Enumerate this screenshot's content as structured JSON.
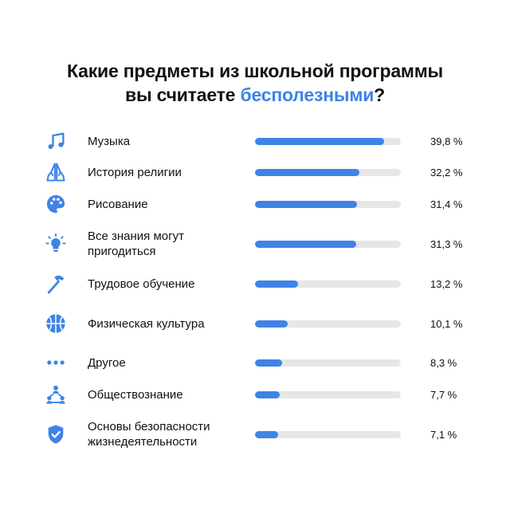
{
  "title": {
    "line1": "Какие предметы из школьной программы",
    "line2_prefix": "вы считаете ",
    "line2_accent": "бесполезными",
    "line2_suffix": "?"
  },
  "colors": {
    "accent": "#3f83e6",
    "track": "#e6e6e6",
    "text": "#111111"
  },
  "chart_data": {
    "type": "bar",
    "orientation": "horizontal",
    "max": 45,
    "rows": [
      {
        "label": "Музыка",
        "value": 39.8,
        "value_label": "39,8 %",
        "icon": "music-note-icon"
      },
      {
        "label": "История религии",
        "value": 32.2,
        "value_label": "32,2 %",
        "icon": "praying-hands-icon"
      },
      {
        "label": "Рисование",
        "value": 31.4,
        "value_label": "31,4 %",
        "icon": "palette-icon"
      },
      {
        "label": "Все знания могут пригодиться",
        "value": 31.3,
        "value_label": "31,3 %",
        "icon": "lightbulb-icon"
      },
      {
        "label": "Трудовое обучение",
        "value": 13.2,
        "value_label": "13,2 %",
        "icon": "hammer-icon"
      },
      {
        "label": "Физическая культура",
        "value": 10.1,
        "value_label": "10,1 %",
        "icon": "basketball-icon"
      },
      {
        "label": "Другое",
        "value": 8.3,
        "value_label": "8,3 %",
        "icon": "dots-icon"
      },
      {
        "label": "Обществознание",
        "value": 7.7,
        "value_label": "7,7 %",
        "icon": "people-network-icon"
      },
      {
        "label": "Основы безопасности жизнедеятельности",
        "value": 7.1,
        "value_label": "7,1 %",
        "icon": "shield-check-icon"
      }
    ]
  }
}
